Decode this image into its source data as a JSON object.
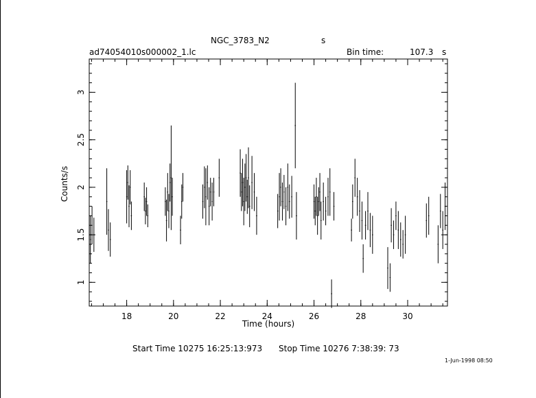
{
  "header": {
    "object": "NGC_3783_N2",
    "object_suffix": "s",
    "file": "ad74054010s000002_1.lc",
    "bin_label": "Bin time:",
    "bin_value": "107.3",
    "bin_unit": "s"
  },
  "footer": {
    "start": "Start Time 10275 16:25:13:973",
    "stop": "Stop Time 10276  7:38:39: 73",
    "stamp": "1-Jun-1998 08:50"
  },
  "chart_data": {
    "type": "scatter",
    "xlabel": "Time (hours)",
    "ylabel": "Counts/s",
    "xlim": [
      16.4,
      31.7
    ],
    "ylim": [
      0.75,
      3.35
    ],
    "x_ticks": [
      18,
      20,
      22,
      24,
      26,
      28,
      30
    ],
    "y_ticks": [
      1,
      1.5,
      2,
      2.5,
      3
    ],
    "x_minor_step": 0.5,
    "y_minor_step": 0.1,
    "grid": false,
    "series": [
      {
        "points": [
          [
            16.45,
            1.45,
            0.25
          ],
          [
            16.52,
            1.6,
            0.2
          ],
          [
            16.6,
            1.5,
            0.18
          ],
          [
            17.15,
            1.85,
            0.35
          ],
          [
            17.22,
            1.55,
            0.22
          ],
          [
            17.3,
            1.45,
            0.18
          ],
          [
            18.0,
            1.9,
            0.28
          ],
          [
            18.05,
            2.05,
            0.18
          ],
          [
            18.1,
            1.8,
            0.22
          ],
          [
            18.15,
            2.0,
            0.18
          ],
          [
            18.2,
            1.7,
            0.15
          ],
          [
            18.75,
            1.9,
            0.15
          ],
          [
            18.8,
            1.75,
            0.14
          ],
          [
            18.85,
            1.85,
            0.15
          ],
          [
            18.9,
            1.7,
            0.12
          ],
          [
            19.65,
            1.85,
            0.15
          ],
          [
            19.7,
            1.65,
            0.22
          ],
          [
            19.75,
            1.95,
            0.2
          ],
          [
            19.8,
            1.75,
            0.18
          ],
          [
            19.85,
            2.05,
            0.2
          ],
          [
            19.9,
            2.1,
            0.55
          ],
          [
            19.95,
            1.9,
            0.2
          ],
          [
            20.3,
            1.55,
            0.15
          ],
          [
            20.35,
            1.85,
            0.18
          ],
          [
            20.4,
            2.0,
            0.15
          ],
          [
            21.25,
            1.85,
            0.18
          ],
          [
            21.32,
            2.0,
            0.22
          ],
          [
            21.38,
            1.9,
            0.3
          ],
          [
            21.45,
            2.05,
            0.18
          ],
          [
            21.52,
            1.8,
            0.2
          ],
          [
            21.58,
            1.95,
            0.15
          ],
          [
            21.65,
            1.85,
            0.2
          ],
          [
            21.72,
            1.95,
            0.15
          ],
          [
            21.95,
            2.1,
            0.2
          ],
          [
            22.85,
            2.15,
            0.25
          ],
          [
            22.9,
            1.95,
            0.2
          ],
          [
            22.95,
            2.05,
            0.25
          ],
          [
            23.0,
            1.85,
            0.25
          ],
          [
            23.05,
            2.0,
            0.25
          ],
          [
            23.1,
            2.1,
            0.25
          ],
          [
            23.15,
            1.9,
            0.18
          ],
          [
            23.2,
            2.1,
            0.32
          ],
          [
            23.25,
            1.8,
            0.22
          ],
          [
            23.35,
            2.05,
            0.28
          ],
          [
            23.45,
            1.95,
            0.2
          ],
          [
            23.55,
            1.7,
            0.2
          ],
          [
            24.45,
            1.75,
            0.18
          ],
          [
            24.52,
            1.9,
            0.25
          ],
          [
            24.58,
            2.0,
            0.2
          ],
          [
            24.65,
            1.85,
            0.2
          ],
          [
            24.72,
            1.95,
            0.18
          ],
          [
            24.8,
            1.8,
            0.2
          ],
          [
            24.88,
            2.0,
            0.25
          ],
          [
            24.95,
            1.85,
            0.18
          ],
          [
            25.05,
            1.9,
            0.22
          ],
          [
            25.2,
            2.65,
            0.45
          ],
          [
            25.25,
            1.7,
            0.25
          ],
          [
            26.0,
            1.85,
            0.18
          ],
          [
            26.05,
            1.75,
            0.15
          ],
          [
            26.1,
            1.9,
            0.2
          ],
          [
            26.15,
            1.7,
            0.2
          ],
          [
            26.2,
            1.85,
            0.15
          ],
          [
            26.25,
            1.95,
            0.2
          ],
          [
            26.3,
            1.65,
            0.2
          ],
          [
            26.4,
            1.85,
            0.2
          ],
          [
            26.5,
            1.75,
            0.15
          ],
          [
            26.6,
            1.9,
            0.2
          ],
          [
            26.68,
            1.95,
            0.25
          ],
          [
            26.75,
            0.88,
            0.15
          ],
          [
            26.85,
            1.8,
            0.15
          ],
          [
            27.6,
            1.55,
            0.12
          ],
          [
            27.65,
            1.85,
            0.18
          ],
          [
            27.75,
            2.1,
            0.2
          ],
          [
            27.85,
            1.9,
            0.2
          ],
          [
            27.95,
            1.75,
            0.22
          ],
          [
            28.05,
            1.65,
            0.2
          ],
          [
            28.1,
            1.25,
            0.15
          ],
          [
            28.2,
            1.6,
            0.15
          ],
          [
            28.3,
            1.75,
            0.2
          ],
          [
            28.4,
            1.55,
            0.18
          ],
          [
            28.5,
            1.5,
            0.2
          ],
          [
            29.15,
            1.15,
            0.22
          ],
          [
            29.25,
            1.05,
            0.15
          ],
          [
            29.3,
            1.6,
            0.18
          ],
          [
            29.4,
            1.5,
            0.15
          ],
          [
            29.5,
            1.7,
            0.15
          ],
          [
            29.6,
            1.55,
            0.2
          ],
          [
            29.7,
            1.45,
            0.18
          ],
          [
            29.8,
            1.4,
            0.15
          ],
          [
            29.9,
            1.5,
            0.2
          ],
          [
            30.8,
            1.65,
            0.18
          ],
          [
            30.9,
            1.7,
            0.2
          ],
          [
            31.3,
            1.4,
            0.2
          ],
          [
            31.4,
            1.75,
            0.18
          ],
          [
            31.5,
            1.55,
            0.2
          ],
          [
            31.6,
            1.8,
            0.25
          ]
        ]
      }
    ]
  }
}
